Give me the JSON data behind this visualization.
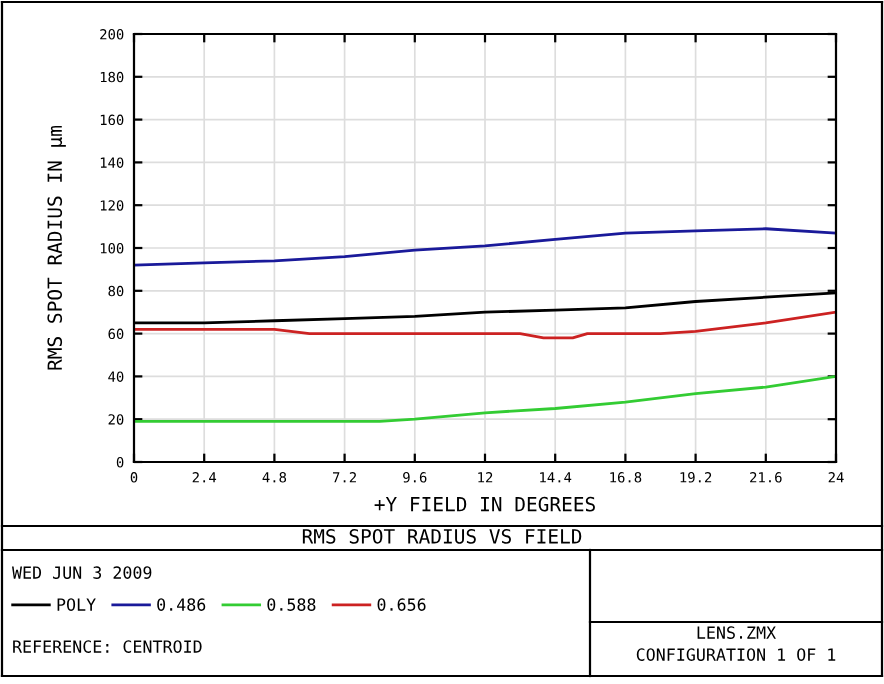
{
  "chart_data": {
    "type": "line",
    "title": "RMS SPOT RADIUS VS FIELD",
    "xlabel": "+Y FIELD IN DEGREES",
    "ylabel": "RMS SPOT RADIUS IN µm",
    "xlim": [
      0,
      24
    ],
    "xticks": [
      0,
      2.4,
      4.8,
      7.2,
      9.6,
      12,
      14.4,
      16.8,
      19.2,
      21.6,
      24
    ],
    "ylim": [
      0,
      200
    ],
    "yticks": [
      0,
      20,
      40,
      60,
      80,
      100,
      120,
      140,
      160,
      180,
      200
    ],
    "grid": true,
    "legend": "bottom",
    "marker": "none",
    "line_style": "solid",
    "annotations": [
      "WED JUN 3 2009",
      "REFERENCE: CENTROID",
      "LENS.ZMX",
      "CONFIGURATION 1 OF 1"
    ],
    "series": [
      {
        "name": "POLY",
        "color": "#000000",
        "x": [
          0,
          2.4,
          4.8,
          7.2,
          9.6,
          12,
          14.4,
          16.8,
          19.2,
          21.6,
          24
        ],
        "values": [
          65,
          65,
          66,
          67,
          68,
          70,
          71,
          72,
          75,
          77,
          79
        ]
      },
      {
        "name": "0.486",
        "color": "#1a1a9a",
        "x": [
          0,
          2.4,
          4.8,
          7.2,
          9.6,
          12,
          14.4,
          16.8,
          19.2,
          21.6,
          24
        ],
        "values": [
          92,
          93,
          94,
          96,
          99,
          101,
          104,
          107,
          108,
          109,
          107
        ]
      },
      {
        "name": "0.588",
        "color": "#33cc33",
        "x": [
          0,
          2.4,
          4.8,
          7.2,
          8.4,
          9.6,
          12,
          14.4,
          16.8,
          19.2,
          21.6,
          24
        ],
        "values": [
          19,
          19,
          19,
          19,
          19,
          20,
          23,
          25,
          28,
          32,
          35,
          40
        ]
      },
      {
        "name": "0.656",
        "color": "#cc2222",
        "x": [
          0,
          2.4,
          4.8,
          6,
          9.6,
          12,
          13.2,
          14,
          15,
          15.5,
          18,
          19.2,
          21.6,
          24
        ],
        "values": [
          62,
          62,
          62,
          60,
          60,
          60,
          60,
          58,
          58,
          60,
          60,
          61,
          65,
          70
        ]
      }
    ]
  }
}
